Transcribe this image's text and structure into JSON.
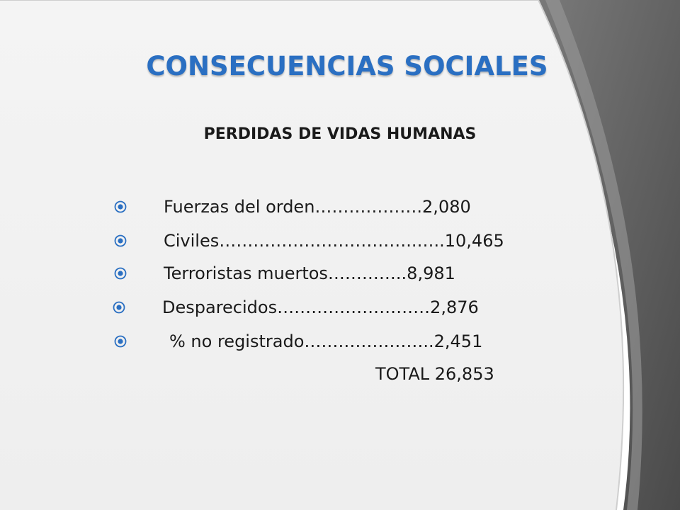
{
  "slide": {
    "title": "Consecuencias sociales",
    "subtitle": "PERDIDAS DE VIDAS HUMANAS",
    "items": [
      {
        "text": "Fuerzas del orden……………….2,080"
      },
      {
        "text": "Civiles……………………………..…..10,465"
      },
      {
        "text": "Terroristas muertos…………..8,981"
      },
      {
        "text": "Desparecidos………………………2,876"
      },
      {
        "text": "% no registrado…………………..2,451"
      }
    ],
    "total": "TOTAL  26,853"
  },
  "colors": {
    "title": "#2a6fc2",
    "panel": "#f2f2f2",
    "dark_band": "#5a5a5a",
    "bullet": "#2a6fc2"
  },
  "icons": {
    "bullet": "circled-dot-icon"
  }
}
